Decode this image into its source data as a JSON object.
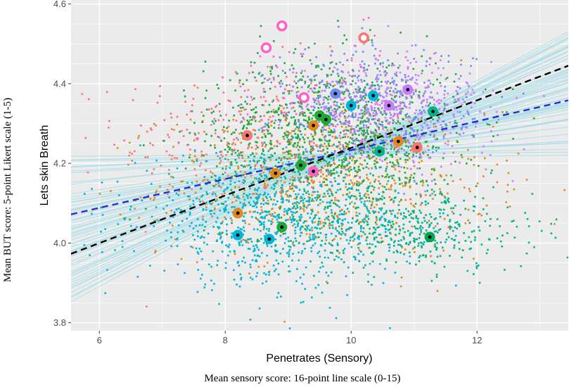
{
  "chart_data": {
    "type": "scatter",
    "xlabel": "Penetrates (Sensory)",
    "ylabel": "Lets skin Breath",
    "outer_xlabel": "Mean sensory score: 16-point line scale (0-15)",
    "outer_ylabel": "Mean BUT score: 5-point Likert scale (1-5)",
    "xlim": [
      5.55,
      13.45
    ],
    "ylim": [
      3.78,
      4.61
    ],
    "x_ticks": [
      6,
      8,
      10,
      12
    ],
    "y_ticks": [
      3.8,
      4.0,
      4.2,
      4.4,
      4.6
    ],
    "x_tick_labels": [
      "6",
      "8",
      "10",
      "12"
    ],
    "y_tick_labels": [
      "3.8",
      "4.0",
      "4.2",
      "4.4",
      "4.6"
    ],
    "grid": true,
    "colors": {
      "panel": "#EBEBEB",
      "grid_major": "#FFFFFF",
      "posterior_lines": "#A6DDE8",
      "black_line": "#000000",
      "blue_line": "#1F2FD4"
    },
    "series": [
      {
        "name": "group-red",
        "color": "#F8766D",
        "center": [
          8.3,
          4.26
        ],
        "spread": [
          1.0,
          0.1
        ],
        "n": 260,
        "means": [
          {
            "x": 8.35,
            "y": 4.27
          },
          {
            "x": 10.2,
            "y": 4.52
          }
        ]
      },
      {
        "name": "group-orange",
        "color": "#E08A1E",
        "center": [
          9.6,
          4.15
        ],
        "spread": [
          1.3,
          0.09
        ],
        "n": 700,
        "means": [
          {
            "x": 8.2,
            "y": 4.07
          },
          {
            "x": 8.8,
            "y": 4.17
          },
          {
            "x": 9.4,
            "y": 4.3
          },
          {
            "x": 10.75,
            "y": 4.25
          },
          {
            "x": 11.05,
            "y": 4.24
          }
        ]
      },
      {
        "name": "group-green",
        "color": "#1FA83A",
        "center": [
          9.7,
          4.27
        ],
        "spread": [
          1.0,
          0.1
        ],
        "n": 1100,
        "means": [
          {
            "x": 9.2,
            "y": 4.2
          },
          {
            "x": 9.5,
            "y": 4.32
          },
          {
            "x": 9.6,
            "y": 4.31
          },
          {
            "x": 8.9,
            "y": 4.04
          }
        ]
      },
      {
        "name": "group-teal",
        "color": "#00B38A",
        "center": [
          10.9,
          4.03
        ],
        "spread": [
          1.0,
          0.05
        ],
        "n": 420,
        "means": [
          {
            "x": 10.45,
            "y": 4.23
          },
          {
            "x": 11.25,
            "y": 4.02
          },
          {
            "x": 11.3,
            "y": 4.33
          }
        ]
      },
      {
        "name": "group-cyan",
        "color": "#00B5D6",
        "center": [
          8.8,
          4.06
        ],
        "spread": [
          1.1,
          0.08
        ],
        "n": 900,
        "means": [
          {
            "x": 8.2,
            "y": 4.02
          },
          {
            "x": 8.7,
            "y": 4.01
          },
          {
            "x": 10.0,
            "y": 4.35
          },
          {
            "x": 10.35,
            "y": 4.37
          }
        ]
      },
      {
        "name": "group-blue",
        "color": "#6E8CF0",
        "center": [
          10.3,
          4.35
        ],
        "spread": [
          0.8,
          0.07
        ],
        "n": 450,
        "means": [
          {
            "x": 9.75,
            "y": 4.37
          }
        ]
      },
      {
        "name": "group-purple",
        "color": "#C77CFF",
        "center": [
          10.7,
          4.33
        ],
        "spread": [
          0.8,
          0.07
        ],
        "n": 420,
        "means": [
          {
            "x": 10.6,
            "y": 4.35
          },
          {
            "x": 10.9,
            "y": 4.38
          }
        ]
      },
      {
        "name": "group-pink",
        "color": "#FF61C3",
        "center": [
          9.5,
          4.36
        ],
        "spread": [
          1.0,
          0.08
        ],
        "n": 120,
        "means": [
          {
            "x": 8.65,
            "y": 4.49
          },
          {
            "x": 8.9,
            "y": 4.55
          },
          {
            "x": 9.25,
            "y": 4.37
          },
          {
            "x": 9.4,
            "y": 4.18
          }
        ]
      }
    ],
    "open_means": [
      {
        "x": 8.65,
        "y": 4.49,
        "color": "#FF61C3"
      },
      {
        "x": 8.9,
        "y": 4.545,
        "color": "#FF61C3"
      },
      {
        "x": 10.2,
        "y": 4.515,
        "color": "#F8766D"
      },
      {
        "x": 9.25,
        "y": 4.365,
        "color": "#FF61C3"
      }
    ],
    "filled_means": [
      {
        "x": 8.35,
        "y": 4.27,
        "color": "#F8766D"
      },
      {
        "x": 8.2,
        "y": 4.075,
        "color": "#E08A1E"
      },
      {
        "x": 8.8,
        "y": 4.175,
        "color": "#E08A1E"
      },
      {
        "x": 9.4,
        "y": 4.295,
        "color": "#E08A1E"
      },
      {
        "x": 10.75,
        "y": 4.255,
        "color": "#E08A1E"
      },
      {
        "x": 11.05,
        "y": 4.24,
        "color": "#F8766D"
      },
      {
        "x": 9.2,
        "y": 4.195,
        "color": "#1FA83A"
      },
      {
        "x": 9.5,
        "y": 4.32,
        "color": "#1FA83A"
      },
      {
        "x": 9.6,
        "y": 4.31,
        "color": "#1FA83A"
      },
      {
        "x": 8.9,
        "y": 4.04,
        "color": "#1FA83A"
      },
      {
        "x": 10.45,
        "y": 4.23,
        "color": "#00B38A"
      },
      {
        "x": 11.25,
        "y": 4.015,
        "color": "#00A651"
      },
      {
        "x": 11.3,
        "y": 4.33,
        "color": "#00B38A"
      },
      {
        "x": 8.2,
        "y": 4.02,
        "color": "#00B5D6"
      },
      {
        "x": 8.7,
        "y": 4.01,
        "color": "#00B5D6"
      },
      {
        "x": 10.0,
        "y": 4.345,
        "color": "#00B5D6"
      },
      {
        "x": 10.35,
        "y": 4.37,
        "color": "#00B5D6"
      },
      {
        "x": 9.75,
        "y": 4.375,
        "color": "#6E8CF0"
      },
      {
        "x": 10.6,
        "y": 4.345,
        "color": "#C77CFF"
      },
      {
        "x": 10.9,
        "y": 4.385,
        "color": "#C77CFF"
      },
      {
        "x": 9.4,
        "y": 4.18,
        "color": "#FF61C3"
      }
    ],
    "regression_black": {
      "x": [
        5.55,
        13.45
      ],
      "y": [
        3.973,
        4.445
      ],
      "style": "dashed"
    },
    "regression_blue": {
      "x": [
        5.55,
        13.45
      ],
      "y": [
        4.072,
        4.358
      ],
      "style": "dashed"
    },
    "posterior_fan": {
      "pivot_x": 9.8,
      "pivot_y": 4.22,
      "slope_min": 0.0,
      "slope_max": 0.085,
      "count": 60
    }
  }
}
